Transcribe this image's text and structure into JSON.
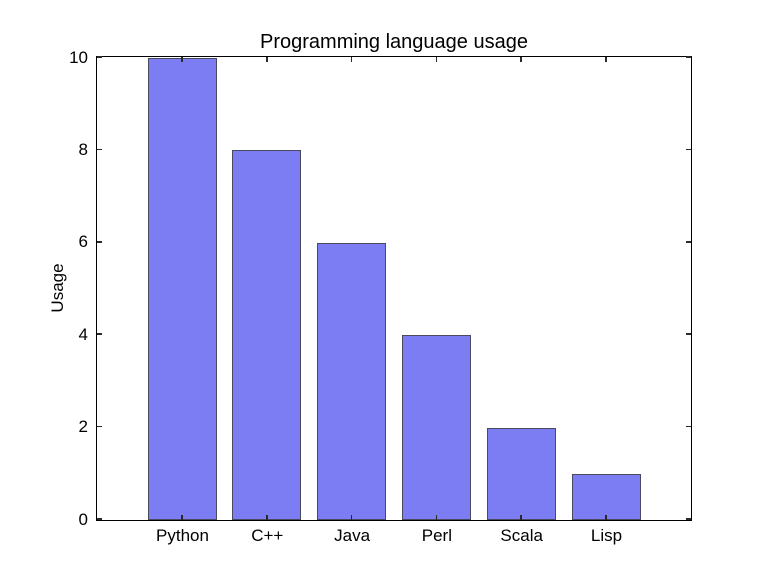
{
  "figure": {
    "background": "#ffffff"
  },
  "chart_data": {
    "type": "bar",
    "title": "Programming language usage",
    "xlabel": "",
    "ylabel": "Usage",
    "categories": [
      "Python",
      "C++",
      "Java",
      "Perl",
      "Scala",
      "Lisp"
    ],
    "values": [
      10,
      8,
      6,
      4,
      2,
      1
    ],
    "ylim": [
      0,
      10
    ],
    "yticks": [
      0,
      2,
      4,
      6,
      8,
      10
    ],
    "grid": false,
    "legend": "none",
    "tick_direction": "in",
    "bar_color": "#7d7df3",
    "bar_edge_color": "#4a4a5e",
    "axis_color": "#000000",
    "text_color": "#000000",
    "background_color": "#ffffff"
  }
}
